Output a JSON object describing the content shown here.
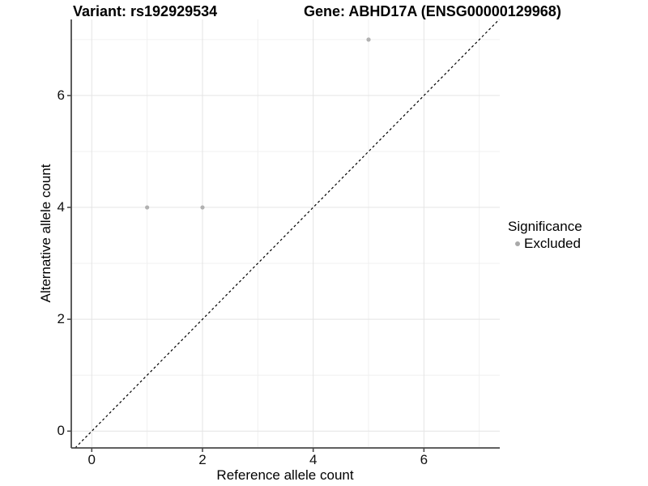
{
  "title": {
    "left": "Variant: rs192929534",
    "right": "Gene: ABHD17A (ENSG00000129968)"
  },
  "chart_data": {
    "type": "scatter",
    "xlabel": "Reference allele count",
    "ylabel": "Alternative allele count",
    "xlim": [
      -0.37,
      7.37
    ],
    "ylim": [
      -0.3,
      7.36
    ],
    "xticks": {
      "major": [
        0,
        2,
        4,
        6
      ],
      "minor": [
        1,
        3,
        5,
        7
      ]
    },
    "yticks": {
      "major": [
        0,
        2,
        4,
        6
      ],
      "minor": [
        1,
        3,
        5,
        7
      ]
    },
    "grid": {
      "on": true,
      "major_color": "#e4e4e4",
      "minor_color": "#f0f0f0"
    },
    "identity_line": {
      "style": "dashed",
      "color": "#000000",
      "slope": 1,
      "intercept": 0
    },
    "series": [
      {
        "name": "Excluded",
        "color": "#b1b1b1",
        "marker_radius_px": 2.6,
        "points": [
          [
            1,
            4
          ],
          [
            2,
            4
          ],
          [
            5,
            7
          ]
        ]
      }
    ],
    "legend": {
      "title": "Significance",
      "position": "right",
      "items": [
        {
          "label": "Excluded",
          "color": "#a9a9a9"
        }
      ]
    },
    "colors": {
      "axis": "#4a4a4a",
      "background": "#ffffff"
    }
  }
}
